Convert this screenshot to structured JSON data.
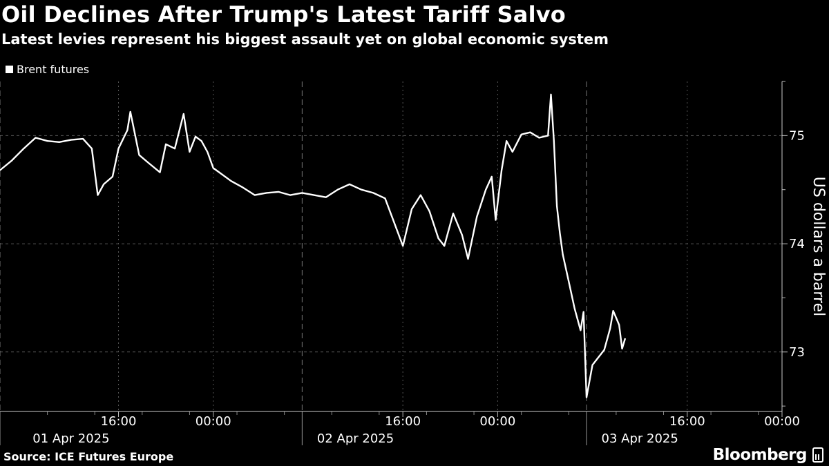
{
  "title": "Oil Declines After Trump's Latest Tariff Salvo",
  "subtitle": "Latest levies represent his biggest assault yet on global economic system",
  "source": "Source: ICE Futures Europe",
  "brand": "Bloomberg",
  "colors": {
    "background": "#000000",
    "line": "#ffffff",
    "grid": "#555555"
  },
  "chart_data": {
    "type": "line",
    "legend_position": "top-left",
    "grid": true,
    "ylabel": "US dollars a barrel",
    "ylim": [
      72.45,
      75.5
    ],
    "yticks": [
      73,
      74,
      75
    ],
    "xlim": [
      "2025-04-01T06:00",
      "2025-04-04T00:00"
    ],
    "x_time_ticks": [
      {
        "time": "2025-04-01T16:00",
        "label": "16:00"
      },
      {
        "time": "2025-04-02T00:00",
        "label": "00:00"
      },
      {
        "time": "2025-04-02T16:00",
        "label": "16:00"
      },
      {
        "time": "2025-04-03T00:00",
        "label": "00:00"
      },
      {
        "time": "2025-04-03T16:00",
        "label": "16:00"
      },
      {
        "time": "2025-04-04T00:00",
        "label": "00:00"
      }
    ],
    "x_date_labels": [
      {
        "time": "2025-04-01T12:00",
        "label": "01 Apr 2025"
      },
      {
        "time": "2025-04-02T12:00",
        "label": "02 Apr 2025"
      },
      {
        "time": "2025-04-03T12:00",
        "label": "03 Apr 2025"
      }
    ],
    "day_boundaries": [
      "2025-04-01T06:00",
      "2025-04-02T07:30",
      "2025-04-03T07:30"
    ],
    "series": [
      {
        "name": "Brent futures",
        "points": [
          [
            "2025-04-01T06:00",
            74.68
          ],
          [
            "2025-04-01T07:00",
            74.77
          ],
          [
            "2025-04-01T08:00",
            74.88
          ],
          [
            "2025-04-01T09:00",
            74.98
          ],
          [
            "2025-04-01T10:00",
            74.95
          ],
          [
            "2025-04-01T11:00",
            74.94
          ],
          [
            "2025-04-01T12:00",
            74.96
          ],
          [
            "2025-04-01T13:00",
            74.97
          ],
          [
            "2025-04-01T13:45",
            74.88
          ],
          [
            "2025-04-01T14:15",
            74.45
          ],
          [
            "2025-04-01T14:45",
            74.55
          ],
          [
            "2025-04-01T15:30",
            74.62
          ],
          [
            "2025-04-01T16:00",
            74.88
          ],
          [
            "2025-04-01T16:45",
            75.05
          ],
          [
            "2025-04-01T17:00",
            75.22
          ],
          [
            "2025-04-01T17:45",
            74.82
          ],
          [
            "2025-04-01T18:30",
            74.75
          ],
          [
            "2025-04-01T19:30",
            74.66
          ],
          [
            "2025-04-01T20:00",
            74.92
          ],
          [
            "2025-04-01T20:45",
            74.88
          ],
          [
            "2025-04-01T21:30",
            75.2
          ],
          [
            "2025-04-01T22:00",
            74.85
          ],
          [
            "2025-04-01T22:30",
            74.99
          ],
          [
            "2025-04-01T23:00",
            74.95
          ],
          [
            "2025-04-01T23:30",
            74.85
          ],
          [
            "2025-04-02T00:00",
            74.7
          ],
          [
            "2025-04-02T00:30",
            74.66
          ],
          [
            "2025-04-02T01:30",
            74.58
          ],
          [
            "2025-04-02T02:30",
            74.52
          ],
          [
            "2025-04-02T03:30",
            74.45
          ],
          [
            "2025-04-02T04:30",
            74.47
          ],
          [
            "2025-04-02T05:30",
            74.48
          ],
          [
            "2025-04-02T06:30",
            74.45
          ],
          [
            "2025-04-02T07:30",
            74.47
          ],
          [
            "2025-04-02T08:30",
            74.45
          ],
          [
            "2025-04-02T09:30",
            74.43
          ],
          [
            "2025-04-02T10:30",
            74.5
          ],
          [
            "2025-04-02T11:30",
            74.55
          ],
          [
            "2025-04-02T12:30",
            74.5
          ],
          [
            "2025-04-02T13:30",
            74.47
          ],
          [
            "2025-04-02T14:30",
            74.42
          ],
          [
            "2025-04-02T15:15",
            74.2
          ],
          [
            "2025-04-02T16:00",
            73.98
          ],
          [
            "2025-04-02T16:45",
            74.32
          ],
          [
            "2025-04-02T17:30",
            74.45
          ],
          [
            "2025-04-02T18:15",
            74.3
          ],
          [
            "2025-04-02T19:00",
            74.05
          ],
          [
            "2025-04-02T19:30",
            73.98
          ],
          [
            "2025-04-02T20:15",
            74.28
          ],
          [
            "2025-04-02T21:00",
            74.08
          ],
          [
            "2025-04-02T21:30",
            73.86
          ],
          [
            "2025-04-02T22:15",
            74.25
          ],
          [
            "2025-04-02T23:00",
            74.5
          ],
          [
            "2025-04-02T23:30",
            74.62
          ],
          [
            "2025-04-02T23:50",
            74.22
          ],
          [
            "2025-04-03T00:20",
            74.68
          ],
          [
            "2025-04-03T00:45",
            74.95
          ],
          [
            "2025-04-03T01:15",
            74.85
          ],
          [
            "2025-04-03T02:00",
            75.01
          ],
          [
            "2025-04-03T02:45",
            75.03
          ],
          [
            "2025-04-03T03:30",
            74.98
          ],
          [
            "2025-04-03T04:15",
            75.0
          ],
          [
            "2025-04-03T04:30",
            75.38
          ],
          [
            "2025-04-03T04:45",
            74.95
          ],
          [
            "2025-04-03T05:00",
            74.35
          ],
          [
            "2025-04-03T05:15",
            74.1
          ],
          [
            "2025-04-03T05:30",
            73.9
          ],
          [
            "2025-04-03T06:00",
            73.65
          ],
          [
            "2025-04-03T06:30",
            73.4
          ],
          [
            "2025-04-03T07:00",
            73.2
          ],
          [
            "2025-04-03T07:15",
            73.37
          ],
          [
            "2025-04-03T07:30",
            72.58
          ],
          [
            "2025-04-03T08:00",
            72.88
          ],
          [
            "2025-04-03T08:30",
            72.95
          ],
          [
            "2025-04-03T09:00",
            73.02
          ],
          [
            "2025-04-03T09:30",
            73.22
          ],
          [
            "2025-04-03T09:45",
            73.38
          ],
          [
            "2025-04-03T10:15",
            73.25
          ],
          [
            "2025-04-03T10:30",
            73.03
          ],
          [
            "2025-04-03T10:45",
            73.12
          ]
        ]
      }
    ]
  }
}
